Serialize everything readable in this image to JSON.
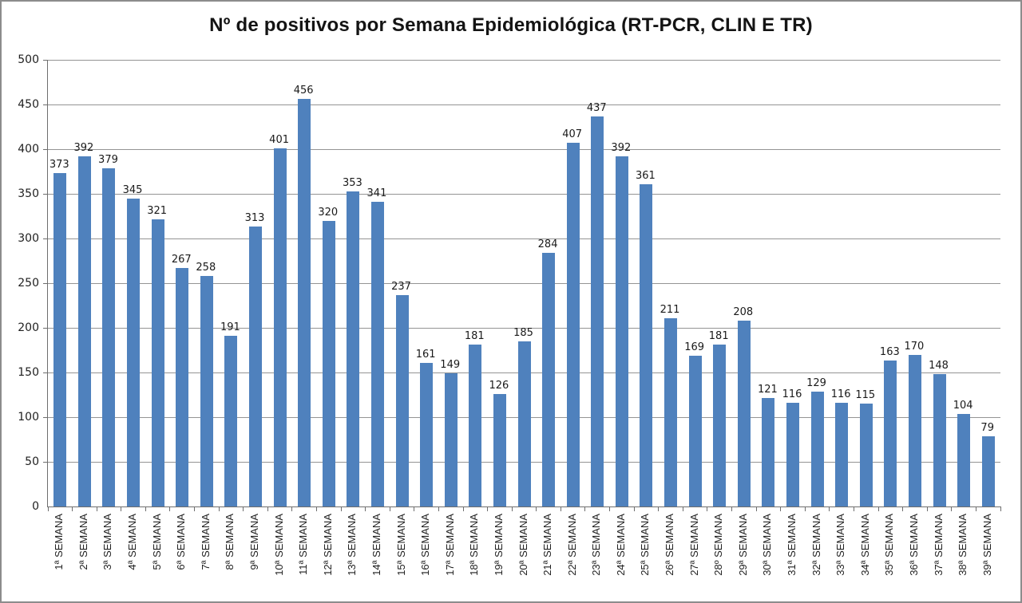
{
  "chart_data": {
    "type": "bar",
    "title": "Nº de positivos por Semana Epidemiológica (RT-PCR, CLIN E TR)",
    "categories": [
      "1ª SEMANA",
      "2ª SEMANA",
      "3ª SEMANA",
      "4ª SEMANA",
      "5ª SEMANA",
      "6ª SEMANA",
      "7ª SEMANA",
      "8ª SEMANA",
      "9ª SEMANA",
      "10ª SEMANA",
      "11ª SEMANA",
      "12ª SEMANA",
      "13ª SEMANA",
      "14ª SEMANA",
      "15ª SEMANA",
      "16ª SEMANA",
      "17ª SEMANA",
      "18ª SEMANA",
      "19ª SEMANA",
      "20ª SEMANA",
      "21ª SEMANA",
      "22ª SEMANA",
      "23ª SEMANA",
      "24ª SEMANA",
      "25ª SEMANA",
      "26ª SEMANA",
      "27ª SEMANA",
      "28º SEMANA",
      "29ª SEMANA",
      "30ª SEMANA",
      "31ª SEMANA",
      "32ª SEMANA",
      "33ª SEMANA",
      "34ª SEMANA",
      "35ª SEMANA",
      "36ª SEMANA",
      "37ª SEMANA",
      "38ª SEMANA",
      "39ª SEMANA"
    ],
    "values": [
      373,
      392,
      379,
      345,
      321,
      267,
      258,
      191,
      313,
      401,
      456,
      320,
      353,
      341,
      237,
      161,
      149,
      181,
      126,
      185,
      284,
      407,
      437,
      392,
      361,
      211,
      169,
      181,
      208,
      121,
      116,
      129,
      116,
      115,
      163,
      170,
      148,
      104,
      79
    ],
    "data_labels_shown": true,
    "xlabel": "",
    "ylabel": "",
    "ylim": [
      0,
      500
    ],
    "yticks": [
      0,
      50,
      100,
      150,
      200,
      250,
      300,
      350,
      400,
      450,
      500
    ],
    "grid": true,
    "legend": "none",
    "bar_color": "#4F81BD",
    "gridline_color": "#949494",
    "axis_color": "#6e6e6e",
    "text_color": "#1a1a1a"
  }
}
